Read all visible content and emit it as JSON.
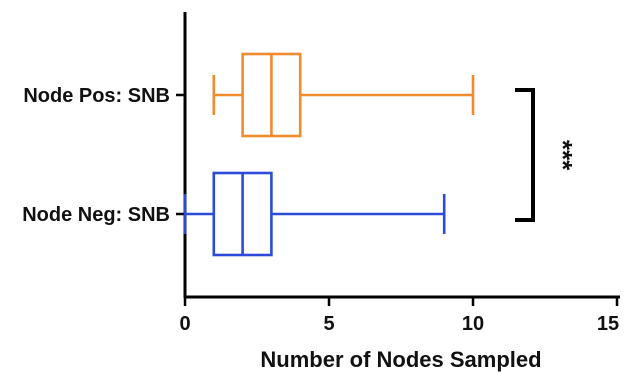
{
  "chart_data": {
    "type": "boxplot",
    "orientation": "horizontal",
    "xlabel": "Number of Nodes Sampled",
    "xlim": [
      0,
      15
    ],
    "x_ticks": [
      "0",
      "5",
      "10",
      "15"
    ],
    "grid": false,
    "legend": "none",
    "series": [
      {
        "category": "Node Pos: SNB",
        "color": "#f28a2e",
        "min": 1,
        "q1": 2,
        "median": 3,
        "q3": 4,
        "max": 10
      },
      {
        "category": "Node Neg: SNB",
        "color": "#2b4bd8",
        "min": 0,
        "q1": 1,
        "median": 2,
        "q3": 3,
        "max": 9
      }
    ],
    "significance": {
      "label": "***",
      "between": [
        "Node Pos: SNB",
        "Node Neg: SNB"
      ]
    }
  }
}
